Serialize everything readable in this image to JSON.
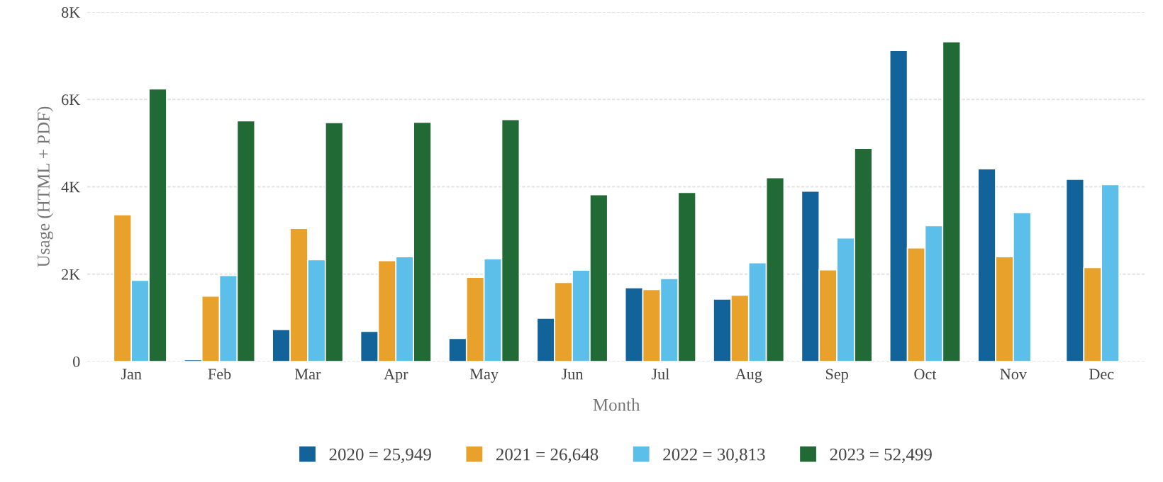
{
  "chart_data": {
    "type": "bar",
    "xlabel": "Month",
    "ylabel": "Usage (HTML + PDF)",
    "categories": [
      "Jan",
      "Feb",
      "Mar",
      "Apr",
      "May",
      "Jun",
      "Jul",
      "Aug",
      "Sep",
      "Oct",
      "Nov",
      "Dec"
    ],
    "series": [
      {
        "name": "2020 = 25,949",
        "color": "#12639a",
        "values": [
          null,
          0.04,
          0.73,
          0.69,
          0.53,
          0.99,
          1.69,
          1.43,
          3.9,
          7.12,
          4.41,
          4.17
        ]
      },
      {
        "name": "2021 = 26,648",
        "color": "#e8a22c",
        "values": [
          3.36,
          1.5,
          3.05,
          2.31,
          1.93,
          1.81,
          1.65,
          1.52,
          2.1,
          2.6,
          2.4,
          2.15
        ]
      },
      {
        "name": "2022 = 30,813",
        "color": "#5bbfea",
        "values": [
          1.86,
          1.97,
          2.33,
          2.4,
          2.35,
          2.09,
          1.9,
          2.26,
          2.83,
          3.11,
          3.41,
          4.05
        ]
      },
      {
        "name": "2023 = 52,499",
        "color": "#226a35",
        "values": [
          6.24,
          5.51,
          5.47,
          5.48,
          5.54,
          3.82,
          3.87,
          4.21,
          4.88,
          7.32,
          null,
          null
        ]
      }
    ],
    "ylim": [
      0,
      8
    ],
    "yticks": [
      {
        "value": 0,
        "label": "0"
      },
      {
        "value": 2,
        "label": "2K"
      },
      {
        "value": 4,
        "label": "4K"
      },
      {
        "value": 6,
        "label": "6K"
      },
      {
        "value": 8,
        "label": "8K"
      }
    ],
    "grid": "y",
    "legend": "bottom"
  }
}
